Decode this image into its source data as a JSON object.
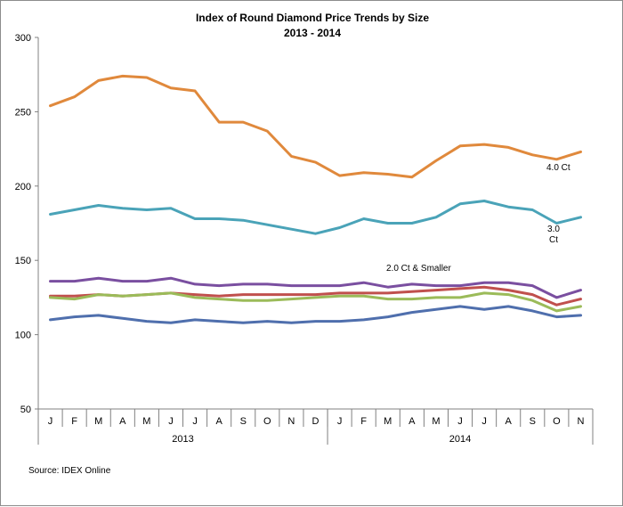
{
  "chart_data": {
    "type": "line",
    "title": "Index of Round Diamond  Price Trends by Size",
    "subtitle": "2013 - 2014",
    "xlabel": "",
    "ylabel": "",
    "ylim": [
      50,
      300
    ],
    "yticks": [
      50,
      100,
      150,
      200,
      250,
      300
    ],
    "months": [
      "J",
      "F",
      "M",
      "A",
      "M",
      "J",
      "J",
      "A",
      "S",
      "O",
      "N",
      "D",
      "J",
      "F",
      "M",
      "A",
      "M",
      "J",
      "J",
      "A",
      "S",
      "O",
      "N"
    ],
    "years": [
      {
        "label": "2013",
        "start": 0,
        "end": 11
      },
      {
        "label": "2014",
        "start": 12,
        "end": 22
      }
    ],
    "grid": false,
    "series": [
      {
        "color": "#e0893c",
        "values": [
          254,
          260,
          271,
          274,
          273,
          266,
          264,
          243,
          243,
          237,
          220,
          216,
          207,
          209,
          208,
          206,
          217,
          227,
          228,
          226,
          221,
          218,
          223
        ]
      },
      {
        "color": "#4aa3b8",
        "values": [
          181,
          184,
          187,
          185,
          184,
          185,
          178,
          178,
          177,
          174,
          171,
          168,
          172,
          178,
          175,
          175,
          179,
          188,
          190,
          186,
          184,
          175,
          179
        ]
      },
      {
        "color": "#7a4fa0",
        "values": [
          136,
          136,
          138,
          136,
          136,
          138,
          134,
          133,
          134,
          134,
          133,
          133,
          133,
          135,
          132,
          134,
          133,
          133,
          135,
          135,
          133,
          125,
          130
        ]
      },
      {
        "color": "#c0504d",
        "values": [
          126,
          126,
          127,
          126,
          127,
          128,
          127,
          126,
          127,
          127,
          127,
          127,
          128,
          128,
          128,
          129,
          130,
          131,
          132,
          130,
          127,
          120,
          124
        ]
      },
      {
        "color": "#9bbb59",
        "values": [
          125,
          124,
          127,
          126,
          127,
          128,
          125,
          124,
          123,
          123,
          124,
          125,
          126,
          126,
          124,
          124,
          125,
          125,
          128,
          127,
          123,
          116,
          119
        ]
      },
      {
        "color": "#4f6fad",
        "values": [
          110,
          112,
          113,
          111,
          109,
          108,
          110,
          109,
          108,
          109,
          108,
          109,
          109,
          110,
          112,
          115,
          117,
          119,
          117,
          119,
          116,
          112,
          113
        ]
      }
    ],
    "annotations": [
      {
        "text": "4.0 Ct"
      },
      {
        "text": "3.0"
      },
      {
        "text": "Ct"
      },
      {
        "text": "2.0 Ct & Smaller"
      }
    ],
    "source": "Source:  IDEX Online"
  }
}
